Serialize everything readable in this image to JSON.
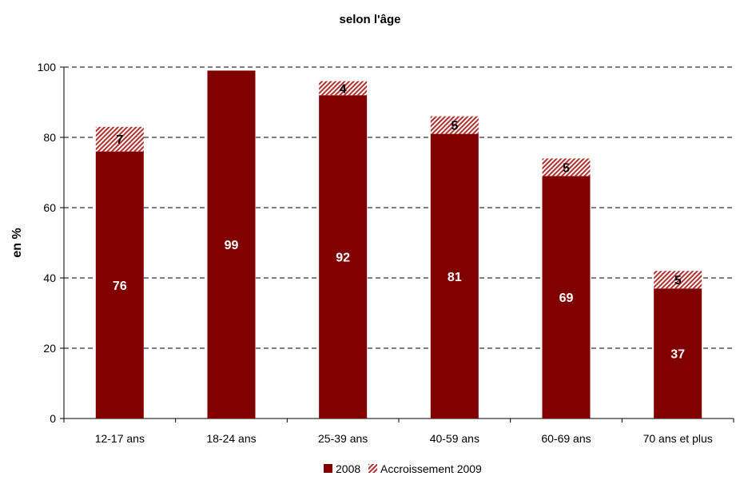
{
  "chart_data": {
    "type": "bar",
    "stacked": true,
    "title": "selon l'âge",
    "ylabel": "en %",
    "xlabel": "",
    "ylim": [
      0,
      100
    ],
    "yticks": [
      "0",
      "20",
      "40",
      "60",
      "80",
      "100"
    ],
    "grid": "horizontal dashed",
    "legend_position": "bottom",
    "categories": [
      "12-17 ans",
      "18-24 ans",
      "25-39 ans",
      "40-59 ans",
      "60-69 ans",
      "70 ans et plus"
    ],
    "series": [
      {
        "name": "2008",
        "values": [
          76,
          99,
          92,
          81,
          69,
          37
        ],
        "labels": [
          "76",
          "99",
          "92",
          "81",
          "69",
          "37"
        ],
        "color": "#800000",
        "pattern": "solid"
      },
      {
        "name": "Accroissement 2009",
        "values": [
          7,
          null,
          4,
          5,
          5,
          5
        ],
        "labels": [
          "7",
          "",
          "4",
          "5",
          "5",
          "5"
        ],
        "color": "#b03030",
        "pattern": "diagonal-hatch"
      }
    ]
  }
}
